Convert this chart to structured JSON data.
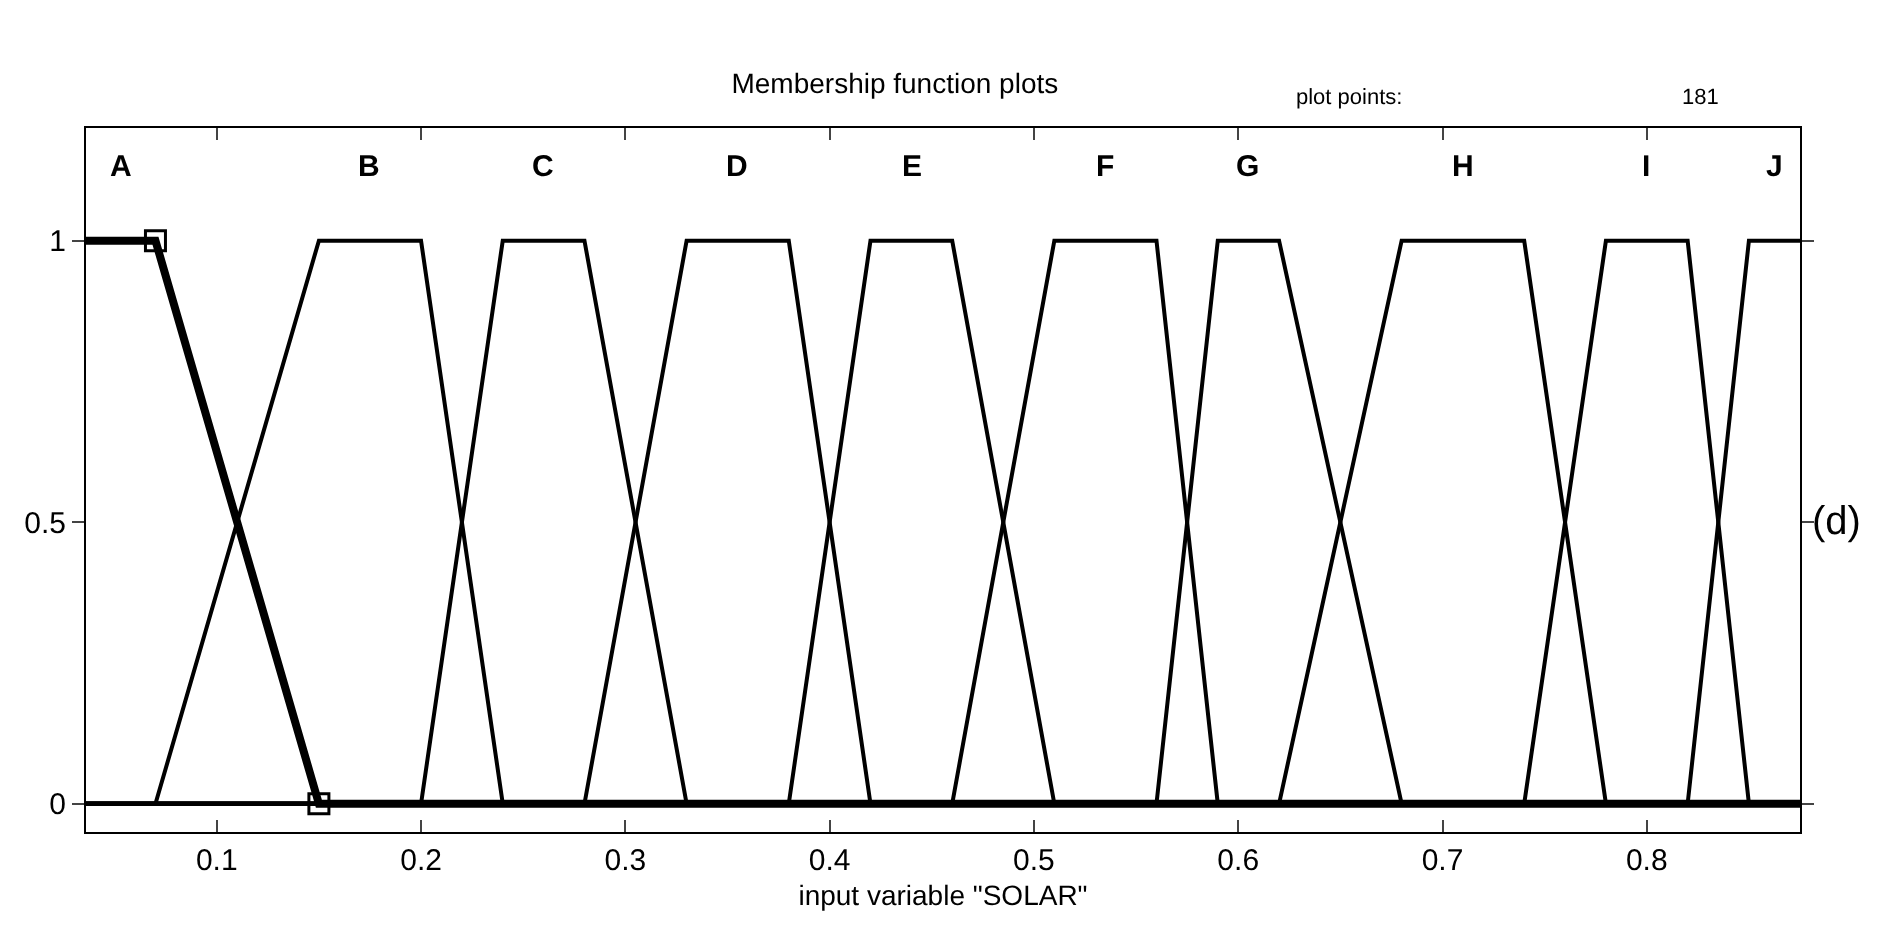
{
  "chart_data": {
    "type": "line",
    "title": "Membership function plots",
    "xlabel": "input variable \"SOLAR\"",
    "xlim": [
      0.036,
      0.875
    ],
    "ylim": [
      -0.05,
      1.2
    ],
    "xticks": [
      0.1,
      0.2,
      0.3,
      0.4,
      0.5,
      0.6,
      0.7,
      0.8
    ],
    "yticks": [
      0,
      0.5,
      1
    ],
    "legend": false,
    "marker": "none",
    "line_style": "solid",
    "series": [
      {
        "name": "A",
        "color": "#000000",
        "x": [
          0.036,
          0.07,
          0.15,
          0.875
        ],
        "values": [
          1,
          1,
          0,
          0
        ]
      },
      {
        "name": "B",
        "color": "#000000",
        "x": [
          0.036,
          0.07,
          0.15,
          0.2,
          0.24,
          0.875
        ],
        "values": [
          0,
          0,
          1,
          1,
          0,
          0
        ]
      },
      {
        "name": "C",
        "color": "#000000",
        "x": [
          0.036,
          0.2,
          0.24,
          0.28,
          0.33,
          0.875
        ],
        "values": [
          0,
          0,
          1,
          1,
          0,
          0
        ]
      },
      {
        "name": "D",
        "color": "#000000",
        "x": [
          0.036,
          0.28,
          0.33,
          0.38,
          0.42,
          0.875
        ],
        "values": [
          0,
          0,
          1,
          1,
          0,
          0
        ]
      },
      {
        "name": "E",
        "color": "#000000",
        "x": [
          0.036,
          0.38,
          0.42,
          0.46,
          0.51,
          0.875
        ],
        "values": [
          0,
          0,
          1,
          1,
          0,
          0
        ]
      },
      {
        "name": "F",
        "color": "#000000",
        "x": [
          0.036,
          0.46,
          0.51,
          0.56,
          0.59,
          0.875
        ],
        "values": [
          0,
          0,
          1,
          1,
          0,
          0
        ]
      },
      {
        "name": "G",
        "color": "#000000",
        "x": [
          0.036,
          0.56,
          0.59,
          0.62,
          0.68,
          0.875
        ],
        "values": [
          0,
          0,
          1,
          1,
          0,
          0
        ]
      },
      {
        "name": "H",
        "color": "#000000",
        "x": [
          0.036,
          0.62,
          0.68,
          0.74,
          0.78,
          0.875
        ],
        "values": [
          0,
          0,
          1,
          1,
          0,
          0
        ]
      },
      {
        "name": "I",
        "color": "#000000",
        "x": [
          0.036,
          0.74,
          0.78,
          0.82,
          0.85,
          0.875
        ],
        "values": [
          0,
          0,
          1,
          1,
          0,
          0
        ]
      },
      {
        "name": "J",
        "color": "#000000",
        "x": [
          0.036,
          0.82,
          0.85,
          0.875
        ],
        "values": [
          0,
          0,
          1,
          1
        ]
      },
      {
        "type": "scatter",
        "marker": "square",
        "color": "#000000",
        "x": [
          0.07,
          0.15
        ],
        "values": [
          1,
          0
        ]
      }
    ],
    "annotations": [
      "plot points:",
      "181",
      "(d)"
    ]
  }
}
